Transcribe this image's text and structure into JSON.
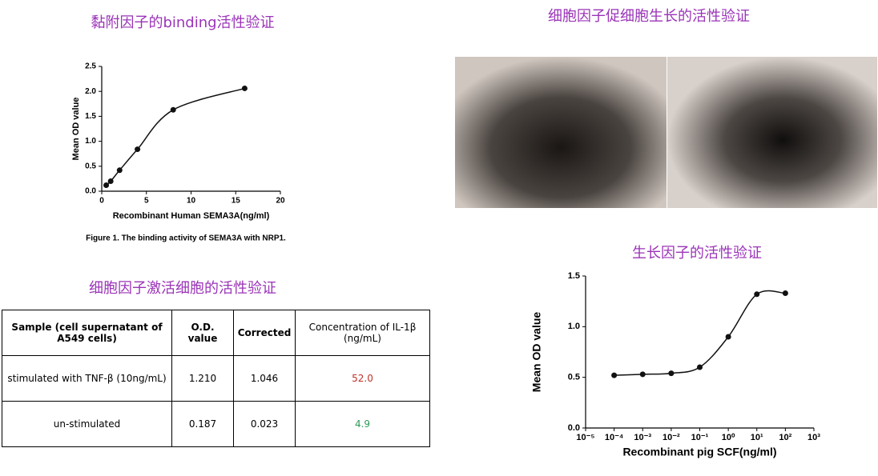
{
  "headings": [
    "黏附因子的binding活性验证",
    "细胞因子促细胞生长的活性验证",
    "细胞因子激活细胞的活性验证",
    "生长因子的活性验证"
  ],
  "chart_data": [
    {
      "type": "scatter",
      "caption": "Figure 1. The binding activity of SEMA3A with NRP1.",
      "xlabel": "Recombinant Human SEMA3A(ng/ml)",
      "ylabel": "Mean OD value",
      "x": [
        0.5,
        1,
        2,
        4,
        8,
        16
      ],
      "values": [
        0.12,
        0.2,
        0.42,
        0.84,
        1.63,
        2.06
      ],
      "color": "#111111",
      "xlim": [
        0,
        20
      ],
      "xticks": [
        0,
        5,
        10,
        15,
        20
      ],
      "ylim": [
        0,
        2.5
      ],
      "yticks": [
        {
          "value": 0,
          "label": "0.0"
        },
        0.5,
        {
          "value": 1,
          "label": "1.0"
        },
        1.5,
        {
          "value": 2,
          "label": "2.0"
        },
        2.5
      ]
    },
    {
      "type": "scatter",
      "xlabel": "Recombinant pig SCF(ng/ml)",
      "ylabel": "Mean OD value",
      "log_x": true,
      "x": [
        0.0001,
        0.001,
        0.01,
        0.1,
        1,
        10,
        100
      ],
      "values": [
        0.52,
        0.53,
        0.54,
        0.6,
        0.9,
        1.32,
        1.33
      ],
      "color": "#111111",
      "xlim": [
        1e-05,
        1000
      ],
      "xticks": [
        {
          "value": 1e-05,
          "label": "10⁻⁵"
        },
        {
          "value": 0.0001,
          "label": "10⁻⁴"
        },
        {
          "value": 0.001,
          "label": "10⁻³"
        },
        {
          "value": 0.01,
          "label": "10⁻²"
        },
        {
          "value": 0.1,
          "label": "10⁻¹"
        },
        {
          "value": 1,
          "label": "10⁰"
        },
        {
          "value": 10,
          "label": "10¹"
        },
        {
          "value": 100,
          "label": "10²"
        },
        {
          "value": 1000,
          "label": "10³"
        }
      ],
      "ylim": [
        0,
        1.5
      ],
      "yticks": [
        {
          "value": 0,
          "label": "0.0"
        },
        0.5,
        {
          "value": 1,
          "label": "1.0"
        },
        1.5
      ]
    }
  ],
  "table": {
    "header": [
      "Sample (cell supernatant of A549 cells)",
      "O.D. value",
      "Corrected",
      "Concentration of IL-1β (ng/mL)"
    ],
    "rows": [
      [
        "stimulated with TNF-β (10ng/mL)",
        "1.210",
        "1.046",
        "52.0"
      ],
      [
        "un-stimulated",
        "0.187",
        "0.023",
        "4.9"
      ]
    ]
  }
}
